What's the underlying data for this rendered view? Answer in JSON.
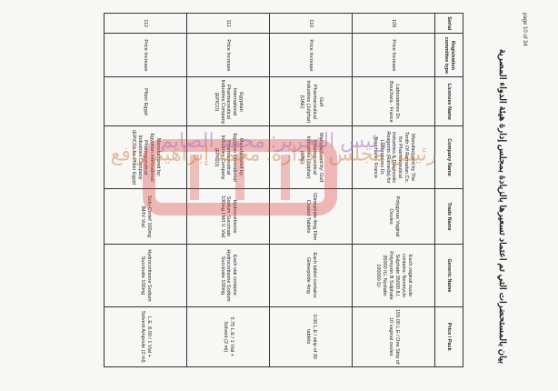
{
  "header": {
    "page": "page 10 of 34",
    "title": "بيان بالمستحضرات التي تم اعتماد تسعيرها بالزيادة بمجلس إدارة هيئة الدواء المصرية"
  },
  "table": {
    "columns": [
      "Serial",
      "Registration committee type",
      "Licensee Name",
      "Company Name",
      "Trade Name",
      "Generic Name",
      "Price / Pack"
    ],
    "rows": [
      [
        "109",
        "Price Increase",
        "Laboratoires Dr. Bouchara - France",
        "Manufactured by The Tenth Of Ramadan Co. for Pharmaceutical Industries & Diagnostic Reagents (Rameda) for Laboratoires Dr. Bouchara - France",
        "Polygynax Vaginal Ovules",
        "Each vaginal ovule contains: Neomycin Sulphate 35000 IU, Polymyxin B Sulphate 35000 IU, Nystatin 100000 IU",
        "159.00 L.E / One Strip of 10 vaginal ovules"
      ],
      [
        "110",
        "Price Increase",
        "Gulf Pharmaceutical Industries (Julphar) (UAE)",
        "Manufactured by: Gulf Pharmaceutical Industries (Julphar) (UAE)",
        "Glimepiride 4mg Film Coated Tablets",
        "Each tablet contains: Glimepiride 4mg",
        "0.00 L.E / strip of 30 tablets"
      ],
      [
        "111",
        "Price Increase",
        "Egyptian International Pharmaceutical Industries Company (EPICO)",
        "Manufactured by: Egyptian International Pharmaceutical Industries Company (EPICO)",
        "Hydrocortisone Sodium Succinate 100mg I.M/I.V. Vial",
        "Each vial contains: Hydrocortisone Sodium Succinate 100mg",
        "5.75 L.E / 1 Vial + Solvent (2 ml)"
      ],
      [
        "112",
        "Price Increase",
        "Pfizer Egypt",
        "Manufactured by: Egyptian International Pharmaceutical Industries Company (EPICO) for Pfizer Egypt",
        "Solu-Cortef 100mg IM/IV Vial",
        "Hydrocortisone Sodium Succinate 100mg",
        "L.E. 8.00 / 1 Vial + Solvent Ampoule (2 ml)"
      ]
    ]
  },
  "watermark": {
    "line1": "رئيس مجلس الإدارة: محمد إبراهيم رافع",
    "line2": "رئيس التحرير: محمد الصايم"
  }
}
